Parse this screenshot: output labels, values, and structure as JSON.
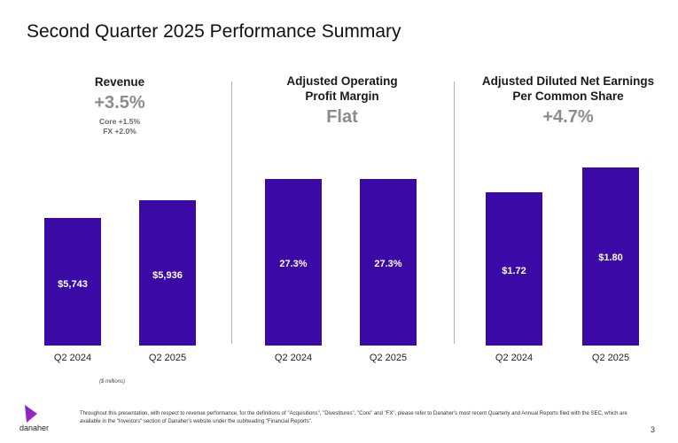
{
  "slide": {
    "title": "Second Quarter 2025 Performance Summary",
    "units_note": "($ millions)",
    "footnote": "Throughout this presentation, with respect to revenue performance, for the definitions of \"Acquisitions\", \"Divestitures\", \"Core\" and \"FX\", please refer to Danaher's most recent Quarterly and Annual Reports filed with the SEC, which are available in the \"Investors\" section of Danaher's website under the subheading \"Financial Reports\".",
    "page_number": "3",
    "logo_text": "danaher",
    "bar_color": "#3b0aa6"
  },
  "panels": [
    {
      "title": "Revenue",
      "metric": "+3.5%",
      "notes": [
        "Core +1.5%",
        "FX +2.0%"
      ]
    },
    {
      "title": "Adjusted Operating\nProfit Margin",
      "metric": "Flat",
      "notes": []
    },
    {
      "title": "Adjusted Diluted Net Earnings\nPer Common Share",
      "metric": "+4.7%",
      "notes": []
    }
  ],
  "chart_data": [
    {
      "type": "bar",
      "title": "Revenue",
      "categories": [
        "Q2 2024",
        "Q2 2025"
      ],
      "values": [
        5743,
        5936
      ],
      "data_labels": [
        "$5,743",
        "$5,936"
      ]
    },
    {
      "type": "bar",
      "title": "Adjusted Operating Profit Margin",
      "categories": [
        "Q2 2024",
        "Q2 2025"
      ],
      "values": [
        27.3,
        27.3
      ],
      "data_labels": [
        "27.3%",
        "27.3%"
      ]
    },
    {
      "type": "bar",
      "title": "Adjusted Diluted Net Earnings Per Common Share",
      "categories": [
        "Q2 2024",
        "Q2 2025"
      ],
      "values": [
        1.72,
        1.8
      ],
      "data_labels": [
        "$1.72",
        "$1.80"
      ]
    }
  ]
}
